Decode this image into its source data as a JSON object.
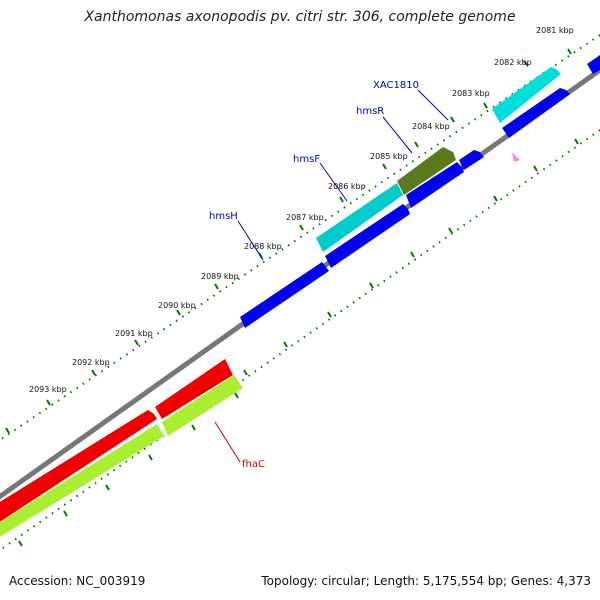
{
  "title": "Xanthomonas axonopodis pv. citri str. 306, complete genome",
  "footer": {
    "accession": "Accession: NC_003919",
    "topology": "Topology: circular; Length: 5,175,554 bp; Genes: 4,373"
  },
  "map": {
    "tick_labels": [
      "2081 kbp",
      "2082 kbp",
      "2083 kbp",
      "2084 kbp",
      "2085 kbp",
      "2086 kbp",
      "2087 kbp",
      "2088 kbp",
      "2089 kbp",
      "2090 kbp",
      "2091 kbp",
      "2092 kbp",
      "2093 kbp"
    ],
    "colors": {
      "backbone": "#808080",
      "forward_cds": "#0000ee",
      "annotated_cds": "#00cccc",
      "annotated_dark": "#5a7a1e",
      "reverse_cds": "#ee0000",
      "reverse_annot": "#aaee33",
      "tick": "#007700",
      "forward_label": "#0000cc",
      "reverse_label": "#cc0000",
      "marker": "#ff88cc"
    },
    "gene_labels": [
      {
        "name": "XAC1810",
        "strand": "forward"
      },
      {
        "name": "hmsR",
        "strand": "forward"
      },
      {
        "name": "hmsF",
        "strand": "forward"
      },
      {
        "name": "hmsH",
        "strand": "forward"
      },
      {
        "name": "fhaC",
        "strand": "reverse"
      }
    ]
  }
}
